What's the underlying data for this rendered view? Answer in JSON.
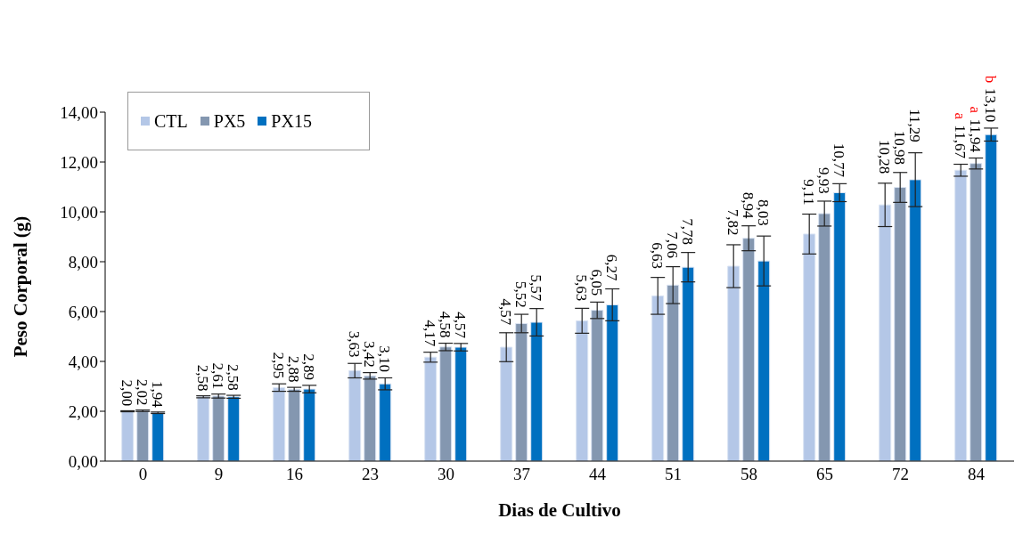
{
  "chart_data": {
    "type": "bar",
    "xlabel": "Dias de Cultivo",
    "ylabel": "Peso Corporal (g)",
    "categories": [
      "0",
      "9",
      "16",
      "23",
      "30",
      "37",
      "44",
      "51",
      "58",
      "65",
      "72",
      "84"
    ],
    "series": [
      {
        "name": "CTL",
        "color": "#b4c7e7",
        "values": [
          2.0,
          2.58,
          2.95,
          3.63,
          4.17,
          4.57,
          5.63,
          6.63,
          7.82,
          9.11,
          10.28,
          11.67
        ],
        "value_labels": [
          "2,00",
          "2,58",
          "2,95",
          "3,63",
          "4,17",
          "4,57",
          "5,63",
          "6,63",
          "7,82",
          "9,11",
          "10,28",
          "11,67"
        ],
        "errors": [
          0.02,
          0.04,
          0.15,
          0.29,
          0.2,
          0.58,
          0.5,
          0.74,
          0.86,
          0.8,
          0.87,
          0.24
        ]
      },
      {
        "name": "PX5",
        "color": "#8497b0",
        "values": [
          2.02,
          2.61,
          2.88,
          3.42,
          4.58,
          5.52,
          6.05,
          7.06,
          8.94,
          9.93,
          10.98,
          11.94
        ],
        "value_labels": [
          "2,02",
          "2,61",
          "2,88",
          "3,42",
          "4,58",
          "5,52",
          "6,05",
          "7,06",
          "8,94",
          "9,93",
          "10,98",
          "11,94"
        ],
        "errors": [
          0.03,
          0.08,
          0.08,
          0.13,
          0.15,
          0.37,
          0.33,
          0.74,
          0.5,
          0.5,
          0.6,
          0.22
        ]
      },
      {
        "name": "PX15",
        "color": "#0070c0",
        "values": [
          1.94,
          2.58,
          2.89,
          3.1,
          4.57,
          5.57,
          6.27,
          7.78,
          8.03,
          10.77,
          11.29,
          13.1
        ],
        "value_labels": [
          "1,94",
          "2,58",
          "2,89",
          "3,10",
          "4,57",
          "5,57",
          "6,27",
          "7,78",
          "8,03",
          "10,77",
          "11,29",
          "13,10"
        ],
        "errors": [
          0.03,
          0.06,
          0.15,
          0.24,
          0.15,
          0.55,
          0.64,
          0.59,
          1.0,
          0.36,
          1.08,
          0.26
        ]
      }
    ],
    "ylim": [
      0,
      14
    ],
    "yticks": [
      {
        "value": 0,
        "label": "0,00"
      },
      {
        "value": 2,
        "label": "2,00"
      },
      {
        "value": 4,
        "label": "4,00"
      },
      {
        "value": 6,
        "label": "6,00"
      },
      {
        "value": 8,
        "label": "8,00"
      },
      {
        "value": 10,
        "label": "10,00"
      },
      {
        "value": 12,
        "label": "12,00"
      },
      {
        "value": 14,
        "label": "14,00"
      }
    ],
    "annotations": [
      "a",
      "a",
      "b"
    ],
    "legend": "top left",
    "grid": false
  }
}
